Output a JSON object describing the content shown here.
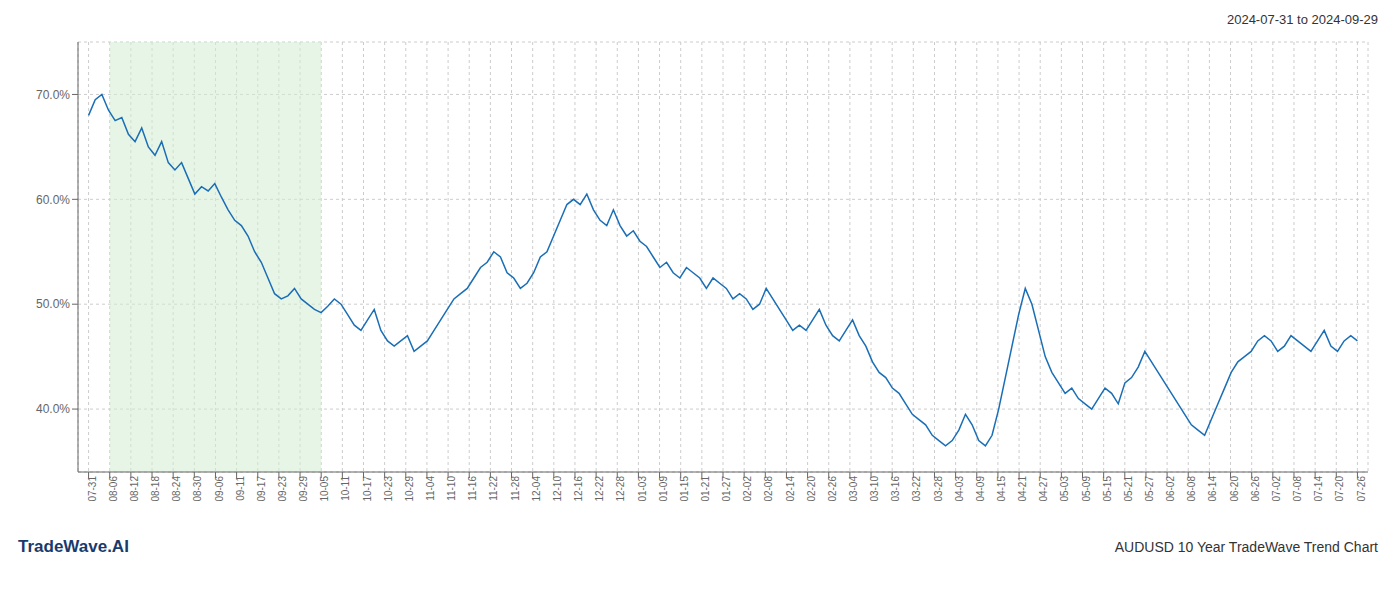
{
  "chart_data": {
    "type": "line",
    "title": "AUDUSD 10 Year TradeWave Trend Chart",
    "subtitle": "2024-07-31 to 2024-09-29",
    "annotations": [
      "TradeWave.AI"
    ],
    "color": "#1a6eb5",
    "grid": true,
    "line_style": "solid",
    "marker": "none",
    "xlim": [
      -0.5,
      60.5
    ],
    "ylim": [
      34,
      75
    ],
    "yticks": [
      {
        "value": 40,
        "label": "40.0%"
      },
      {
        "value": 50,
        "label": "50.0%"
      },
      {
        "value": 60,
        "label": "60.0%"
      },
      {
        "value": 70,
        "label": "70.0%"
      }
    ],
    "shading": {
      "x": [
        1,
        11
      ],
      "color": "#d4ecd4"
    },
    "xticks": [
      {
        "value": 0,
        "label": "07-31"
      },
      {
        "value": 1,
        "label": "08-06"
      },
      {
        "value": 2,
        "label": "08-12"
      },
      {
        "value": 3,
        "label": "08-18"
      },
      {
        "value": 4,
        "label": "08-24"
      },
      {
        "value": 5,
        "label": "08-30"
      },
      {
        "value": 6,
        "label": "09-06"
      },
      {
        "value": 7,
        "label": "09-11"
      },
      {
        "value": 8,
        "label": "09-17"
      },
      {
        "value": 9,
        "label": "09-23"
      },
      {
        "value": 10,
        "label": "09-29"
      },
      {
        "value": 11,
        "label": "10-05"
      },
      {
        "value": 12,
        "label": "10-11"
      },
      {
        "value": 13,
        "label": "10-17"
      },
      {
        "value": 14,
        "label": "10-23"
      },
      {
        "value": 15,
        "label": "10-29"
      },
      {
        "value": 16,
        "label": "11-04"
      },
      {
        "value": 17,
        "label": "11-10"
      },
      {
        "value": 18,
        "label": "11-16"
      },
      {
        "value": 19,
        "label": "11-22"
      },
      {
        "value": 20,
        "label": "11-28"
      },
      {
        "value": 21,
        "label": "12-04"
      },
      {
        "value": 22,
        "label": "12-10"
      },
      {
        "value": 23,
        "label": "12-16"
      },
      {
        "value": 24,
        "label": "12-22"
      },
      {
        "value": 25,
        "label": "12-28"
      },
      {
        "value": 26,
        "label": "01-03"
      },
      {
        "value": 27,
        "label": "01-09"
      },
      {
        "value": 28,
        "label": "01-15"
      },
      {
        "value": 29,
        "label": "01-21"
      },
      {
        "value": 30,
        "label": "01-27"
      },
      {
        "value": 31,
        "label": "02-02"
      },
      {
        "value": 32,
        "label": "02-08"
      },
      {
        "value": 33,
        "label": "02-14"
      },
      {
        "value": 34,
        "label": "02-20"
      },
      {
        "value": 35,
        "label": "02-26"
      },
      {
        "value": 36,
        "label": "03-04"
      },
      {
        "value": 37,
        "label": "03-10"
      },
      {
        "value": 38,
        "label": "03-16"
      },
      {
        "value": 39,
        "label": "03-22"
      },
      {
        "value": 40,
        "label": "03-28"
      },
      {
        "value": 41,
        "label": "04-03"
      },
      {
        "value": 42,
        "label": "04-09"
      },
      {
        "value": 43,
        "label": "04-15"
      },
      {
        "value": 44,
        "label": "04-21"
      },
      {
        "value": 45,
        "label": "04-27"
      },
      {
        "value": 46,
        "label": "05-03"
      },
      {
        "value": 47,
        "label": "05-09"
      },
      {
        "value": 48,
        "label": "05-15"
      },
      {
        "value": 49,
        "label": "05-21"
      },
      {
        "value": 50,
        "label": "05-27"
      },
      {
        "value": 51,
        "label": "06-02"
      },
      {
        "value": 52,
        "label": "06-08"
      },
      {
        "value": 53,
        "label": "06-14"
      },
      {
        "value": 54,
        "label": "06-20"
      },
      {
        "value": 55,
        "label": "06-26"
      },
      {
        "value": 56,
        "label": "07-02"
      },
      {
        "value": 57,
        "label": "07-08"
      },
      {
        "value": 58,
        "label": "07-14"
      },
      {
        "value": 59,
        "label": "07-20"
      },
      {
        "value": 60,
        "label": "07-26"
      }
    ],
    "x": [
      0,
      0.3141,
      0.6283,
      0.9424,
      1.2565,
      1.5707,
      1.8848,
      2.199,
      2.5131,
      2.8272,
      3.1414,
      3.4555,
      3.7696,
      4.0838,
      4.3979,
      4.712,
      5.0262,
      5.3403,
      5.6545,
      5.9686,
      6.2827,
      6.5969,
      6.911,
      7.2251,
      7.5393,
      7.8534,
      8.1675,
      8.4817,
      8.7958,
      9.1099,
      9.4241,
      9.7382,
      10.0524,
      10.3665,
      10.6806,
      10.9948,
      11.3089,
      11.623,
      11.9372,
      12.2513,
      12.5654,
      12.8796,
      13.1937,
      13.5079,
      13.822,
      14.1361,
      14.4503,
      14.7644,
      15.0785,
      15.3927,
      15.7068,
      16.0209,
      16.3351,
      16.6492,
      16.9634,
      17.2775,
      17.5916,
      17.9058,
      18.2199,
      18.534,
      18.8482,
      19.1623,
      19.4764,
      19.7906,
      20.1047,
      20.4188,
      20.733,
      21.0471,
      21.3613,
      21.6754,
      21.9895,
      22.3037,
      22.6178,
      22.9319,
      23.2461,
      23.5602,
      23.8743,
      24.1885,
      24.5026,
      24.8168,
      25.1309,
      25.445,
      25.7592,
      26.0733,
      26.3874,
      26.7016,
      27.0157,
      27.3298,
      27.644,
      27.9581,
      28.2723,
      28.5864,
      28.9005,
      29.2147,
      29.5288,
      29.8429,
      30.1571,
      30.4712,
      30.7853,
      31.0995,
      31.4136,
      31.7277,
      32.0419,
      32.356,
      32.6702,
      32.9843,
      33.2984,
      33.6126,
      33.9267,
      34.2408,
      34.555,
      34.8691,
      35.1832,
      35.4974,
      35.8115,
      36.1257,
      36.4398,
      36.7539,
      37.0681,
      37.3822,
      37.6963,
      38.0105,
      38.3246,
      38.6387,
      38.9529,
      39.267,
      39.5812,
      39.8953,
      40.2094,
      40.5236,
      40.8377,
      41.1518,
      41.466,
      41.7801,
      42.0942,
      42.4084,
      42.7225,
      43.0366,
      43.3508,
      43.6649,
      43.9791,
      44.2932,
      44.6073,
      44.9215,
      45.2356,
      45.5497,
      45.8639,
      46.178,
      46.4921,
      46.8063,
      47.1204,
      47.4346,
      47.7487,
      48.0628,
      48.377,
      48.6911,
      49.0052,
      49.3194,
      49.6335,
      49.9476,
      50.2618,
      50.5759,
      50.8901,
      51.2042,
      51.5183,
      51.8325,
      52.1466,
      52.4607,
      52.7749,
      53.089,
      53.4031,
      53.7173,
      54.0314,
      54.3455,
      54.6597,
      54.9738,
      55.288,
      55.6021,
      55.9162,
      56.2304,
      56.5445,
      56.8586,
      57.1728,
      57.4869,
      57.801,
      58.1152,
      58.4293,
      58.7435,
      59.0576,
      59.3717,
      59.6859,
      60
    ],
    "values": [
      68.0,
      69.5,
      70.0,
      68.5,
      67.5,
      67.8,
      66.2,
      65.5,
      66.8,
      65.0,
      64.2,
      65.5,
      63.5,
      62.8,
      63.5,
      62.0,
      60.5,
      61.2,
      60.8,
      61.5,
      60.2,
      59.0,
      58.0,
      57.5,
      56.5,
      55.0,
      54.0,
      52.5,
      51.0,
      50.5,
      50.8,
      51.5,
      50.5,
      50.0,
      49.5,
      49.2,
      49.8,
      50.5,
      50.0,
      49.0,
      48.0,
      47.5,
      48.5,
      49.5,
      47.5,
      46.5,
      46.0,
      46.5,
      47.0,
      45.5,
      46.0,
      46.5,
      47.5,
      48.5,
      49.5,
      50.5,
      51.0,
      51.5,
      52.5,
      53.5,
      54.0,
      55.0,
      54.5,
      53.0,
      52.5,
      51.5,
      52.0,
      53.0,
      54.5,
      55.0,
      56.5,
      58.0,
      59.5,
      60.0,
      59.5,
      60.5,
      59.0,
      58.0,
      57.5,
      59.0,
      57.5,
      56.5,
      57.0,
      56.0,
      55.5,
      54.5,
      53.5,
      54.0,
      53.0,
      52.5,
      53.5,
      53.0,
      52.5,
      51.5,
      52.5,
      52.0,
      51.5,
      50.5,
      51.0,
      50.5,
      49.5,
      50.0,
      51.5,
      50.5,
      49.5,
      48.5,
      47.5,
      48.0,
      47.5,
      48.5,
      49.5,
      48.0,
      47.0,
      46.5,
      47.5,
      48.5,
      47.0,
      46.0,
      44.5,
      43.5,
      43.0,
      42.0,
      41.5,
      40.5,
      39.5,
      39.0,
      38.5,
      37.5,
      37.0,
      36.5,
      37.0,
      38.0,
      39.5,
      38.5,
      37.0,
      36.5,
      37.5,
      40.0,
      43.0,
      46.0,
      49.0,
      51.5,
      50.0,
      47.5,
      45.0,
      43.5,
      42.5,
      41.5,
      42.0,
      41.0,
      40.5,
      40.0,
      41.0,
      42.0,
      41.5,
      40.5,
      42.5,
      43.0,
      44.0,
      45.5,
      44.5,
      43.5,
      42.5,
      41.5,
      40.5,
      39.5,
      38.5,
      38.0,
      37.5,
      39.0,
      40.5,
      42.0,
      43.5,
      44.5,
      45.0,
      45.5,
      46.5,
      47.0,
      46.5,
      45.5,
      46.0,
      47.0,
      46.5,
      46.0,
      45.5,
      46.5,
      47.5,
      46.0,
      45.5,
      46.5,
      47.0,
      46.5
    ]
  }
}
